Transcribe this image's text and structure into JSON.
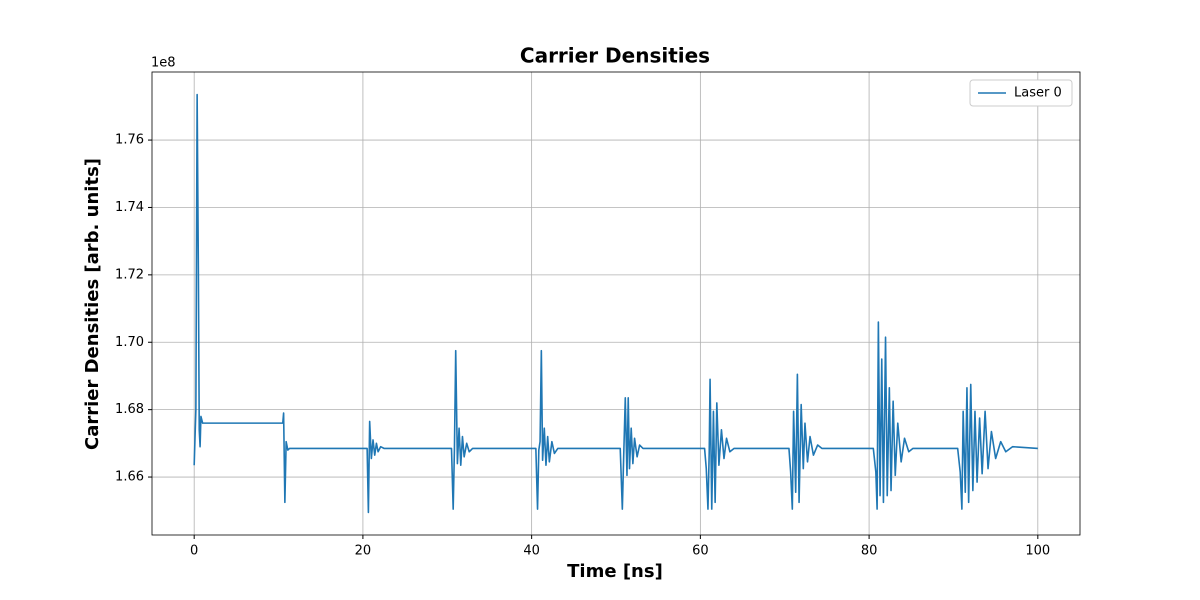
{
  "chart_data": {
    "type": "line",
    "title": "Carrier Densities",
    "x_label": "Time [ns]",
    "y_label": "Carrier Densities [arb. units]",
    "y_offset_label": "1e8",
    "xlim": [
      -5,
      105
    ],
    "ylim": [
      1.6428,
      1.7802
    ],
    "xticks": [
      0,
      20,
      40,
      60,
      80,
      100
    ],
    "yticks": [
      1.66,
      1.68,
      {
        "value": 1.7,
        "label": "1.70"
      },
      1.72,
      1.74,
      1.76
    ],
    "grid": true,
    "legend": "upper right",
    "x": [
      0,
      0.2,
      0.35,
      0.5,
      0.6,
      0.7,
      0.8,
      1.0,
      10.5,
      10.6,
      10.75,
      10.9,
      11.1,
      11.3,
      20.5,
      20.65,
      20.8,
      21.0,
      21.2,
      21.4,
      21.6,
      21.8,
      22.1,
      22.5,
      30.5,
      30.7,
      30.85,
      31.0,
      31.2,
      31.4,
      31.6,
      31.8,
      32.0,
      32.3,
      32.6,
      33,
      40.5,
      40.7,
      40.85,
      41.0,
      41.15,
      41.3,
      41.5,
      41.7,
      41.9,
      42.1,
      42.4,
      42.7,
      43.1,
      50.5,
      50.75,
      50.9,
      51.1,
      51.3,
      51.45,
      51.6,
      51.8,
      52.0,
      52.2,
      52.5,
      52.8,
      53.2,
      60.5,
      60.7,
      60.9,
      61.05,
      61.15,
      61.35,
      61.55,
      61.75,
      61.95,
      62.2,
      62.5,
      62.8,
      63.1,
      63.5,
      64,
      70.5,
      70.7,
      70.9,
      71.05,
      71.3,
      71.5,
      71.7,
      71.95,
      72.2,
      72.4,
      72.7,
      73.0,
      73.4,
      73.9,
      74.4,
      80.5,
      80.8,
      80.95,
      81.1,
      81.3,
      81.5,
      81.7,
      81.95,
      82.15,
      82.4,
      82.6,
      82.85,
      83.1,
      83.4,
      83.8,
      84.2,
      84.7,
      85.2,
      90.5,
      90.8,
      91.0,
      91.15,
      91.4,
      91.6,
      91.8,
      92.05,
      92.3,
      92.55,
      92.8,
      93.1,
      93.4,
      93.75,
      94.1,
      94.5,
      95,
      95.6,
      96.2,
      97,
      100
    ],
    "series": [
      {
        "name": "Laser 0",
        "color": "#1f77b4",
        "values": [
          1.6635,
          1.68,
          1.7735,
          1.72,
          1.674,
          1.669,
          1.678,
          1.676,
          1.676,
          1.679,
          1.6525,
          1.6705,
          1.668,
          1.6685,
          1.6685,
          1.6495,
          1.6765,
          1.6655,
          1.671,
          1.6665,
          1.67,
          1.6675,
          1.669,
          1.6685,
          1.6685,
          1.6505,
          1.6685,
          1.6975,
          1.664,
          1.6745,
          1.6635,
          1.672,
          1.666,
          1.67,
          1.6675,
          1.6685,
          1.6685,
          1.6505,
          1.668,
          1.6705,
          1.6975,
          1.665,
          1.6745,
          1.6635,
          1.672,
          1.6645,
          1.6705,
          1.667,
          1.6685,
          1.6685,
          1.6505,
          1.665,
          1.6835,
          1.6605,
          1.6835,
          1.6625,
          1.6745,
          1.664,
          1.6715,
          1.666,
          1.6695,
          1.6685,
          1.6685,
          1.6625,
          1.6505,
          1.6675,
          1.689,
          1.6505,
          1.6795,
          1.6525,
          1.682,
          1.6635,
          1.674,
          1.6655,
          1.6715,
          1.6675,
          1.6685,
          1.6685,
          1.6615,
          1.6505,
          1.6795,
          1.6555,
          1.6905,
          1.6525,
          1.6815,
          1.6625,
          1.676,
          1.6645,
          1.672,
          1.6665,
          1.6695,
          1.6685,
          1.6685,
          1.6615,
          1.6505,
          1.706,
          1.6545,
          1.695,
          1.6525,
          1.7015,
          1.6545,
          1.6865,
          1.656,
          1.6825,
          1.6605,
          1.676,
          1.6645,
          1.6715,
          1.6675,
          1.6685,
          1.6685,
          1.6615,
          1.6505,
          1.6795,
          1.6555,
          1.6865,
          1.6525,
          1.6875,
          1.656,
          1.6795,
          1.6585,
          1.6775,
          1.661,
          1.6795,
          1.6625,
          1.6735,
          1.6655,
          1.6705,
          1.6675,
          1.669,
          1.6685
        ]
      }
    ]
  }
}
